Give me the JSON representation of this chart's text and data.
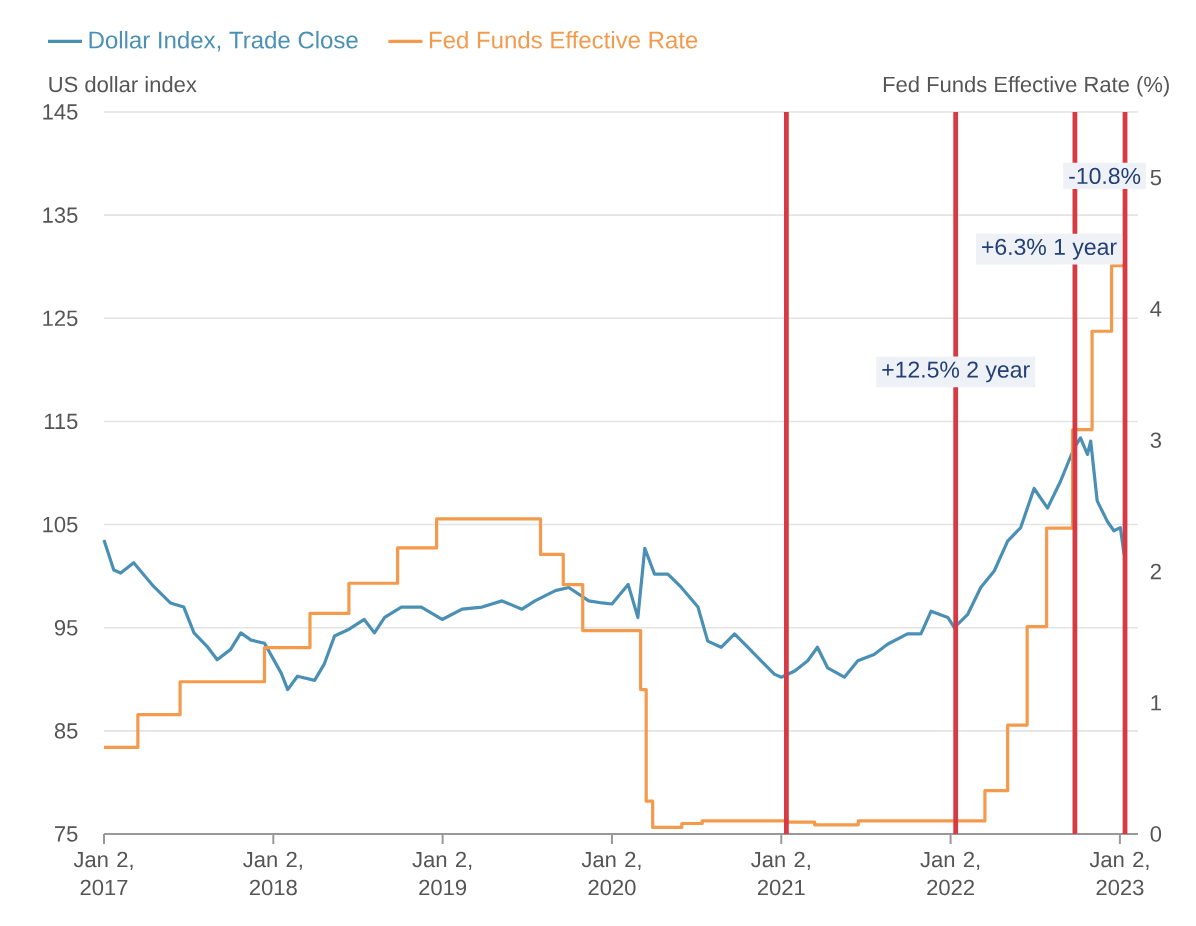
{
  "chart_data": {
    "type": "line",
    "legend": "top left",
    "grid": "y",
    "ylabel": "US dollar index",
    "y2label": "Fed Funds Effective Rate (%)",
    "xlim": [
      "2017-01-02",
      "2023-02-10"
    ],
    "xticks": [
      {
        "value": "2017-01-02",
        "label": "Jan 2, 2017"
      },
      {
        "value": "2018-01-02",
        "label": "Jan 2, 2018"
      },
      {
        "value": "2019-01-02",
        "label": "Jan 2, 2019"
      },
      {
        "value": "2020-01-02",
        "label": "Jan 2, 2020"
      },
      {
        "value": "2021-01-02",
        "label": "Jan 2, 2021"
      },
      {
        "value": "2022-01-02",
        "label": "Jan 2, 2022"
      },
      {
        "value": "2023-01-02",
        "label": "Jan 2, 2023"
      }
    ],
    "ylim": [
      75,
      145
    ],
    "yticks": [
      75,
      85,
      95,
      105,
      115,
      125,
      135,
      145
    ],
    "y2lim": [
      0,
      5.5
    ],
    "y2ticks": [
      0,
      1,
      2,
      3,
      4,
      5
    ],
    "series": [
      {
        "name": "Dollar Index, Trade Close",
        "color": "#4a90b4",
        "x": [
          "2017-01-02",
          "2017-01-23",
          "2017-02-07",
          "2017-03-07",
          "2017-04-19",
          "2017-05-25",
          "2017-06-23",
          "2017-07-15",
          "2017-08-12",
          "2017-09-03",
          "2017-10-02",
          "2017-10-24",
          "2017-11-15",
          "2017-12-14",
          "2018-01-19",
          "2018-02-02",
          "2018-02-23",
          "2018-04-01",
          "2018-04-22",
          "2018-05-14",
          "2018-06-12",
          "2018-07-17",
          "2018-08-08",
          "2018-08-30",
          "2018-10-05",
          "2018-11-17",
          "2019-01-01",
          "2019-02-13",
          "2019-03-28",
          "2019-05-10",
          "2019-06-22",
          "2019-07-20",
          "2019-09-02",
          "2019-10-01",
          "2019-11-13",
          "2019-12-12",
          "2020-01-02",
          "2020-02-06",
          "2020-02-27",
          "2020-03-13",
          "2020-04-03",
          "2020-05-02",
          "2020-05-31",
          "2020-07-06",
          "2020-07-27",
          "2020-08-25",
          "2020-09-23",
          "2020-10-22",
          "2020-11-19",
          "2020-12-18",
          "2021-01-02",
          "2021-01-31",
          "2021-02-28",
          "2021-03-21",
          "2021-04-12",
          "2021-05-18",
          "2021-06-16",
          "2021-07-21",
          "2021-08-19",
          "2021-10-01",
          "2021-10-30",
          "2021-11-21",
          "2021-12-27",
          "2022-01-10",
          "2022-02-08",
          "2022-03-08",
          "2022-04-06",
          "2022-05-05",
          "2022-06-02",
          "2022-07-01",
          "2022-07-30",
          "2022-08-27",
          "2022-09-25",
          "2022-10-09",
          "2022-10-24",
          "2022-10-31",
          "2022-11-14",
          "2022-12-06",
          "2022-12-20",
          "2023-01-03",
          "2023-01-11"
        ],
        "values": [
          103.5,
          100.6,
          100.3,
          101.3,
          99.0,
          97.4,
          97.0,
          94.5,
          93.2,
          91.9,
          92.9,
          94.5,
          93.8,
          93.5,
          90.6,
          89.0,
          90.3,
          89.9,
          91.5,
          94.2,
          94.8,
          95.8,
          94.5,
          96.0,
          97.0,
          97.0,
          95.8,
          96.8,
          97.0,
          97.6,
          96.8,
          97.6,
          98.6,
          98.9,
          97.6,
          97.4,
          97.3,
          99.2,
          96.0,
          102.7,
          100.2,
          100.2,
          98.9,
          97.0,
          93.7,
          93.1,
          94.4,
          93.1,
          91.8,
          90.5,
          90.2,
          90.8,
          91.8,
          93.1,
          91.1,
          90.2,
          91.8,
          92.4,
          93.4,
          94.4,
          94.4,
          96.6,
          96.0,
          95.0,
          96.3,
          98.9,
          100.5,
          103.4,
          104.7,
          108.5,
          106.6,
          109.2,
          112.4,
          113.4,
          111.8,
          113.1,
          107.3,
          105.3,
          104.4,
          104.7,
          102.1
        ]
      },
      {
        "name": "Fed Funds Effective Rate",
        "color": "#f39a4c",
        "type": "step",
        "axis": "y2",
        "x": [
          "2017-01-02",
          "2017-03-16",
          "2017-06-15",
          "2017-12-14",
          "2018-03-22",
          "2018-06-14",
          "2018-09-27",
          "2018-12-20",
          "2019-08-01",
          "2019-09-19",
          "2019-10-31",
          "2020-03-04",
          "2020-03-16",
          "2020-03-30",
          "2020-06-01",
          "2020-07-15",
          "2021-01-15",
          "2021-03-15",
          "2021-06-17",
          "2022-03-17",
          "2022-05-05",
          "2022-06-16",
          "2022-07-28",
          "2022-09-22",
          "2022-11-03",
          "2022-12-15",
          "2023-01-13"
        ],
        "values": [
          0.66,
          0.91,
          1.16,
          1.42,
          1.68,
          1.91,
          2.18,
          2.4,
          2.13,
          1.9,
          1.55,
          1.1,
          0.25,
          0.05,
          0.08,
          0.1,
          0.09,
          0.07,
          0.1,
          0.33,
          0.83,
          1.58,
          2.33,
          3.08,
          3.83,
          4.33,
          4.33
        ]
      }
    ],
    "ref_lines": [
      {
        "axis": "x",
        "value": "2021-01-13",
        "color": "#d63a44"
      },
      {
        "axis": "x",
        "value": "2022-01-13",
        "color": "#d63a44"
      },
      {
        "axis": "x",
        "value": "2022-09-27",
        "color": "#d63a44"
      },
      {
        "axis": "x",
        "value": "2023-01-13",
        "color": "#d63a44"
      }
    ],
    "annotations": [
      {
        "text": "-10.8%",
        "x": "2022-11-30",
        "y": 138.8
      },
      "+6.3% 1 year",
      {
        "text": "+12.5% 2 year",
        "x": "2022-01-13",
        "y": 119.8
      }
    ]
  }
}
